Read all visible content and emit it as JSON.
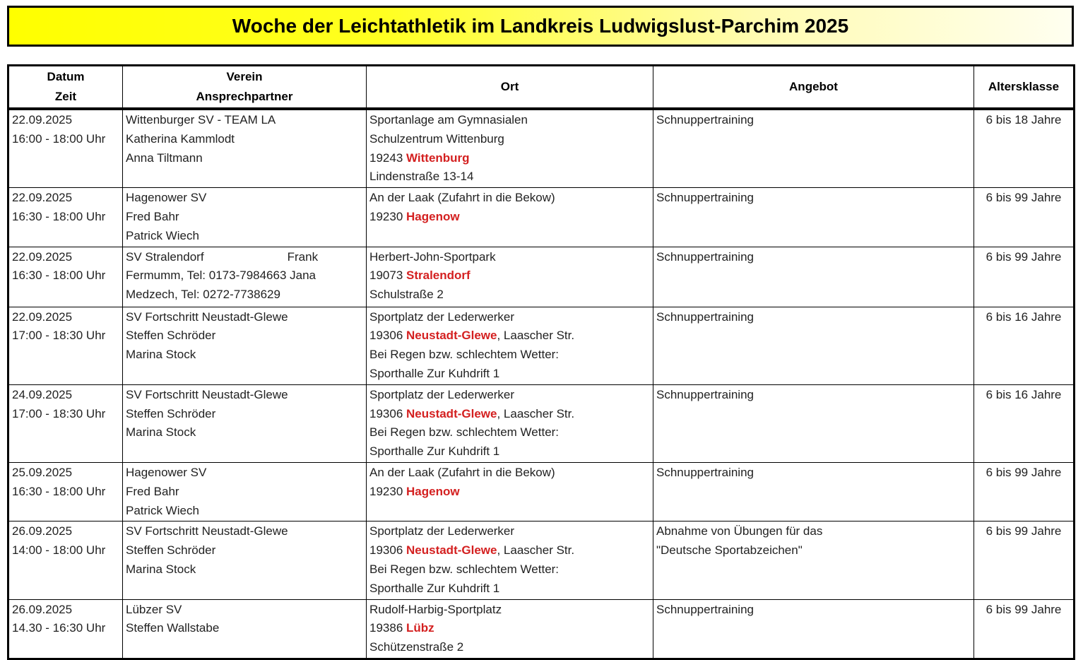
{
  "title": "Woche der Leichtathletik im Landkreis Ludwigslust-Parchim 2025",
  "accent_color": "#d42020",
  "headers": [
    [
      "Datum",
      "Zeit"
    ],
    [
      "Verein",
      "Ansprechpartner"
    ],
    [
      "Ort"
    ],
    [
      "Angebot"
    ],
    [
      "Altersklasse"
    ]
  ],
  "rows": [
    {
      "datum": [
        "22.09.2025",
        "16:00 - 18:00 Uhr"
      ],
      "verein": [
        "Wittenburger SV - TEAM LA",
        "Katherina Kammlodt",
        "Anna Tiltmann"
      ],
      "ort": [
        {
          "pre": "Sportanlage am Gymnasialen"
        },
        {
          "pre": "Schulzentrum Wittenburg"
        },
        {
          "pre": "19243 ",
          "city": "Wittenburg"
        },
        {
          "pre": "Lindenstraße 13-14"
        }
      ],
      "angebot": [
        "Schnuppertraining"
      ],
      "alter": "6 bis 18 Jahre"
    },
    {
      "datum": [
        "22.09.2025",
        "16:30 - 18:00 Uhr"
      ],
      "verein": [
        "Hagenower SV",
        "Fred Bahr",
        "Patrick Wiech"
      ],
      "ort": [
        {
          "pre": "An der Laak (Zufahrt in die Bekow)"
        },
        {
          "pre": "19230 ",
          "city": "Hagenow"
        }
      ],
      "angebot": [
        "Schnuppertraining"
      ],
      "alter": "6 bis 99 Jahre"
    },
    {
      "datum": [
        "22.09.2025",
        "16:30 - 18:00 Uhr"
      ],
      "verein": [
        "SV Stralendorf                         Frank",
        "Fermumm, Tel: 0173-7984663 Jana",
        "Medzech, Tel: 0272-7738629"
      ],
      "ort": [
        {
          "pre": "Herbert-John-Sportpark"
        },
        {
          "pre": "19073 ",
          "city": "Stralendorf"
        },
        {
          "pre": "Schulstraße 2"
        }
      ],
      "angebot": [
        "Schnuppertraining"
      ],
      "alter": "6 bis 99 Jahre"
    },
    {
      "datum": [
        "22.09.2025",
        "17:00 - 18:30 Uhr"
      ],
      "verein": [
        "SV Fortschritt Neustadt-Glewe",
        "Steffen Schröder",
        "Marina Stock"
      ],
      "ort": [
        {
          "pre": "Sportplatz der Lederwerker"
        },
        {
          "pre": "19306 ",
          "city": "Neustadt-Glewe",
          "post": ", Laascher Str."
        },
        {
          "pre": "Bei Regen bzw. schlechtem Wetter:"
        },
        {
          "pre": "Sporthalle Zur Kuhdrift 1"
        }
      ],
      "angebot": [
        "Schnuppertraining"
      ],
      "alter": "6 bis 16 Jahre"
    },
    {
      "datum": [
        "24.09.2025",
        "17:00 - 18:30 Uhr"
      ],
      "verein": [
        "SV Fortschritt Neustadt-Glewe",
        "Steffen Schröder",
        "Marina Stock"
      ],
      "ort": [
        {
          "pre": "Sportplatz der Lederwerker"
        },
        {
          "pre": "19306 ",
          "city": "Neustadt-Glewe",
          "post": ", Laascher Str."
        },
        {
          "pre": "Bei Regen bzw. schlechtem Wetter:"
        },
        {
          "pre": "Sporthalle Zur Kuhdrift 1"
        }
      ],
      "angebot": [
        "Schnuppertraining"
      ],
      "alter": "6 bis 16 Jahre"
    },
    {
      "datum": [
        "25.09.2025",
        "16:30 - 18:00 Uhr"
      ],
      "verein": [
        "Hagenower SV",
        "Fred Bahr",
        "Patrick Wiech"
      ],
      "ort": [
        {
          "pre": "An der Laak (Zufahrt in die Bekow)"
        },
        {
          "pre": "19230 ",
          "city": "Hagenow"
        }
      ],
      "angebot": [
        "Schnuppertraining"
      ],
      "alter": "6 bis 99 Jahre"
    },
    {
      "datum": [
        "26.09.2025",
        "14:00 - 18:00 Uhr"
      ],
      "verein": [
        "SV Fortschritt Neustadt-Glewe",
        "Steffen Schröder",
        "Marina Stock"
      ],
      "ort": [
        {
          "pre": "Sportplatz der Lederwerker"
        },
        {
          "pre": "19306 ",
          "city": "Neustadt-Glewe",
          "post": ", Laascher Str."
        },
        {
          "pre": "Bei Regen bzw. schlechtem Wetter:"
        },
        {
          "pre": "Sporthalle Zur Kuhdrift 1"
        }
      ],
      "angebot": [
        "Abnahme von Übungen für das",
        "\"Deutsche Sportabzeichen\""
      ],
      "alter": "6 bis 99 Jahre"
    },
    {
      "datum": [
        "26.09.2025",
        "14.30 - 16:30 Uhr"
      ],
      "verein": [
        "Lübzer SV",
        "Steffen Wallstabe"
      ],
      "ort": [
        {
          "pre": "Rudolf-Harbig-Sportplatz"
        },
        {
          "pre": "19386 ",
          "city": "Lübz"
        },
        {
          "pre": "Schützenstraße 2"
        }
      ],
      "angebot": [
        "Schnuppertraining"
      ],
      "alter": "6 bis 99 Jahre"
    }
  ]
}
